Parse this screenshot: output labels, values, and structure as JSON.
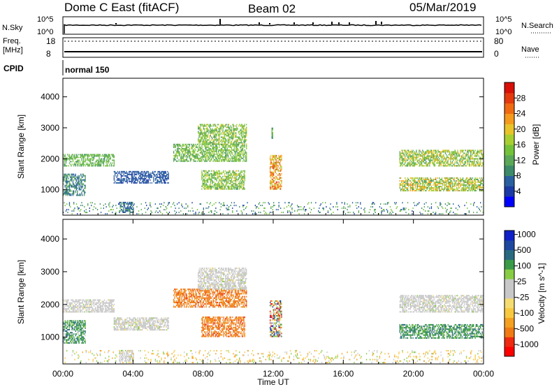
{
  "header": {
    "station": "Dome C East (fitACF)",
    "beam": "Beam 02",
    "date": "05/Mar/2019"
  },
  "strip": {
    "nsky_label": "N.Sky",
    "nsky_ticks": [
      "10^5",
      "10^0"
    ],
    "nsearch_label": "N.Search",
    "nsearch_ticks": [
      "10^5",
      "10^0"
    ],
    "freq_label_1": "Freq.",
    "freq_label_2": "[MHz]",
    "freq_ticks": [
      "18",
      "8"
    ],
    "nave_label": "Nave",
    "nave_ticks": [
      "80",
      "0"
    ],
    "cpid_label": "CPID",
    "cpid_value": "normal 150"
  },
  "colors": {
    "power": [
      "#0000ff",
      "#1c3aa5",
      "#2a60a0",
      "#3c8a6a",
      "#5aa858",
      "#74c23a",
      "#a8cf32",
      "#e8c428",
      "#f59a1c",
      "#f06a12",
      "#e43a0e",
      "#d81008"
    ],
    "velocity": [
      "#ff0000",
      "#ee2a10",
      "#f07a14",
      "#f4a020",
      "#f8c840",
      "#f4dc70",
      "#c8c8c8",
      "#c8c8c8",
      "#88cc44",
      "#3a9a48",
      "#2a6a80",
      "#1e48a0",
      "#1020c8"
    ]
  },
  "chart_data": [
    {
      "type": "heatmap",
      "name": "power",
      "xlabel": "",
      "ylabel": "Slant Range [km]",
      "x_range_hours": [
        0,
        24
      ],
      "y_range_km": [
        180,
        4600
      ],
      "y_ticks": [
        1000,
        2000,
        3000,
        4000
      ],
      "y_tick_labels": [
        "1000",
        "2000",
        "3000",
        "4000"
      ],
      "colorbar": {
        "label": "Power [dB]",
        "range": [
          0,
          32
        ],
        "ticks": [
          4,
          8,
          12,
          16,
          20,
          24,
          28
        ],
        "tick_labels": [
          "4",
          "8",
          "12",
          "16",
          "20",
          "24",
          "28"
        ]
      },
      "scatter_regions": [
        {
          "t": [
            0.0,
            2.9
          ],
          "r": [
            1750,
            2150
          ],
          "level": [
            10,
            16
          ]
        },
        {
          "t": [
            0.0,
            1.3
          ],
          "r": [
            800,
            1500
          ],
          "level": [
            6,
            12
          ]
        },
        {
          "t": [
            2.9,
            6.0
          ],
          "r": [
            1200,
            1600
          ],
          "level": [
            4,
            8
          ]
        },
        {
          "t": [
            3.2,
            4.0
          ],
          "r": [
            250,
            600
          ],
          "level": [
            4,
            10
          ]
        },
        {
          "t": [
            6.3,
            10.5
          ],
          "r": [
            1900,
            2450
          ],
          "level": [
            10,
            18
          ]
        },
        {
          "t": [
            7.7,
            10.5
          ],
          "r": [
            2450,
            3100
          ],
          "level": [
            10,
            20
          ]
        },
        {
          "t": [
            7.9,
            10.4
          ],
          "r": [
            1000,
            1600
          ],
          "level": [
            10,
            20
          ]
        },
        {
          "t": [
            11.8,
            12.5
          ],
          "r": [
            1000,
            2100
          ],
          "level": [
            16,
            28
          ]
        },
        {
          "t": [
            11.9,
            12.0
          ],
          "r": [
            2600,
            3000
          ],
          "level": [
            8,
            14
          ]
        },
        {
          "t": [
            19.2,
            24.0
          ],
          "r": [
            1750,
            2250
          ],
          "level": [
            10,
            22
          ]
        },
        {
          "t": [
            19.2,
            24.0
          ],
          "r": [
            950,
            1400
          ],
          "level": [
            10,
            24
          ]
        },
        {
          "t": [
            0.0,
            24.0
          ],
          "r": [
            200,
            600
          ],
          "level": [
            4,
            16
          ]
        }
      ]
    },
    {
      "type": "heatmap",
      "name": "velocity",
      "xlabel": "Time UT",
      "ylabel": "Slant Range [km]",
      "x_range_hours": [
        0,
        24
      ],
      "x_ticks": [
        0,
        4,
        8,
        12,
        16,
        20,
        24
      ],
      "x_tick_labels": [
        "00:00",
        "04:00",
        "08:00",
        "12:00",
        "16:00",
        "20:00",
        "00:00"
      ],
      "y_range_km": [
        180,
        4600
      ],
      "y_ticks": [
        1000,
        2000,
        3000,
        4000
      ],
      "y_tick_labels": [
        "1000",
        "2000",
        "3000",
        "4000"
      ],
      "colorbar": {
        "label": "Velocity [m s^-1]",
        "ticks": [
          -1000,
          -500,
          -100,
          -25,
          25,
          100,
          500,
          1000
        ],
        "tick_labels": [
          "-1000",
          "-500",
          "-100",
          "-25",
          "25",
          "100",
          "500",
          "1000"
        ]
      },
      "scatter_regions": [
        {
          "t": [
            0.0,
            2.9
          ],
          "r": [
            1750,
            2150
          ],
          "cls": "grey"
        },
        {
          "t": [
            0.0,
            1.3
          ],
          "r": [
            800,
            1500
          ],
          "cls": "green"
        },
        {
          "t": [
            2.9,
            6.0
          ],
          "r": [
            1200,
            1600
          ],
          "cls": "grey"
        },
        {
          "t": [
            3.2,
            4.0
          ],
          "r": [
            250,
            600
          ],
          "cls": "grey"
        },
        {
          "t": [
            6.3,
            10.5
          ],
          "r": [
            1900,
            2450
          ],
          "cls": "orange"
        },
        {
          "t": [
            7.7,
            10.5
          ],
          "r": [
            2450,
            3100
          ],
          "cls": "grey"
        },
        {
          "t": [
            7.9,
            10.4
          ],
          "r": [
            1000,
            1600
          ],
          "cls": "orange"
        },
        {
          "t": [
            11.8,
            12.5
          ],
          "r": [
            1000,
            2100
          ],
          "cls": "mixed"
        },
        {
          "t": [
            19.2,
            24.0
          ],
          "r": [
            1750,
            2250
          ],
          "cls": "grey"
        },
        {
          "t": [
            19.2,
            24.0
          ],
          "r": [
            950,
            1400
          ],
          "cls": "green"
        },
        {
          "t": [
            0.0,
            24.0
          ],
          "r": [
            200,
            600
          ],
          "cls": "yellow"
        }
      ]
    }
  ]
}
